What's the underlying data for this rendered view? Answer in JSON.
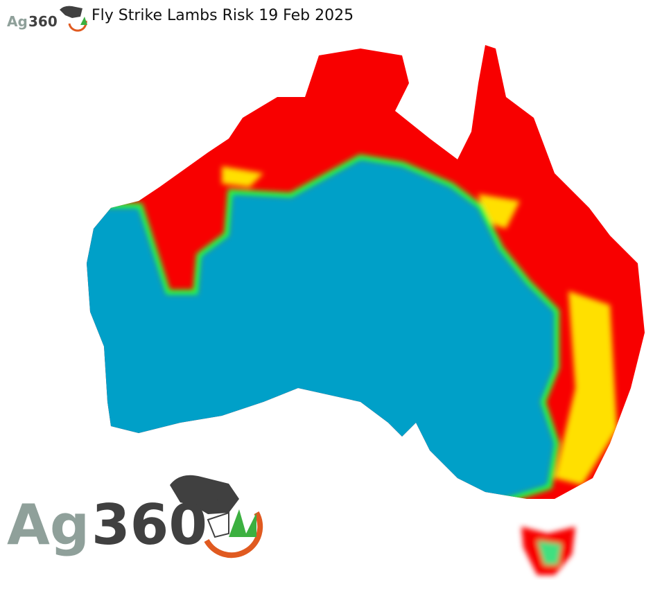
{
  "header": {
    "title": "Fly Strike Lambs Risk 19 Feb 2025"
  },
  "logo": {
    "text": "Ag360",
    "mark": "®"
  },
  "map": {
    "region": "Australia",
    "colors": {
      "high": "#f80000",
      "moderate": "#ffe000",
      "low": "#00ff40",
      "minimal": "#00a0c8"
    }
  }
}
